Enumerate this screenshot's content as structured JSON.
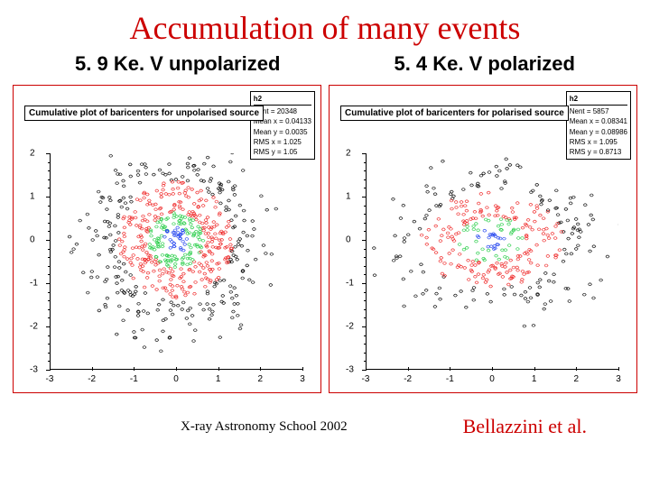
{
  "title": "Accumulation of many events",
  "subtitles": {
    "left": "5. 9 Ke. V unpolarized",
    "right": "5. 4 Ke. V polarized"
  },
  "plots": {
    "left": {
      "title": "Cumulative plot of baricenters for unpolarised source",
      "stats": {
        "name": "h2",
        "nent": "Nent = 20348",
        "meanx": "Mean x = 0.04133",
        "meany": "Mean y = 0.0035",
        "rmsx": "RMS x = 1.025",
        "rmsy": "RMS y = 1.05"
      },
      "xlim": [
        -3,
        3
      ],
      "ylim": [
        -3,
        2
      ],
      "xticks": [
        -3,
        -2,
        -1,
        0,
        1,
        2,
        3
      ],
      "yticks": [
        -3,
        -2,
        -1,
        0,
        1,
        2
      ],
      "distribution": "circular",
      "colors": {
        "outer": "#000000",
        "mid": "#ee2222",
        "inner": "#22cc44",
        "core": "#2244ee"
      }
    },
    "right": {
      "title": "Cumulative plot of baricenters for polarised source",
      "stats": {
        "name": "h2",
        "nent": "Nent = 5857",
        "meanx": "Mean x = 0.08341",
        "meany": "Mean y = 0.08986",
        "rmsx": "RMS x = 1.095",
        "rmsy": "RMS y = 0.8713"
      },
      "xlim": [
        -3,
        3
      ],
      "ylim": [
        -3,
        2
      ],
      "xticks": [
        -3,
        -2,
        -1,
        0,
        1,
        2,
        3
      ],
      "yticks": [
        -3,
        -2,
        -1,
        0,
        1,
        2
      ],
      "distribution": "elliptical",
      "colors": {
        "outer": "#000000",
        "mid": "#ee2222",
        "inner": "#22cc44",
        "core": "#2244ee"
      }
    }
  },
  "footer": {
    "left": "X-ray Astronomy School 2002",
    "right": "Bellazzini et al."
  },
  "styling": {
    "title_color": "#cc0000",
    "title_fontsize": 36,
    "subtitle_fontsize": 22,
    "border_color": "#cc0000",
    "background": "#ffffff"
  }
}
